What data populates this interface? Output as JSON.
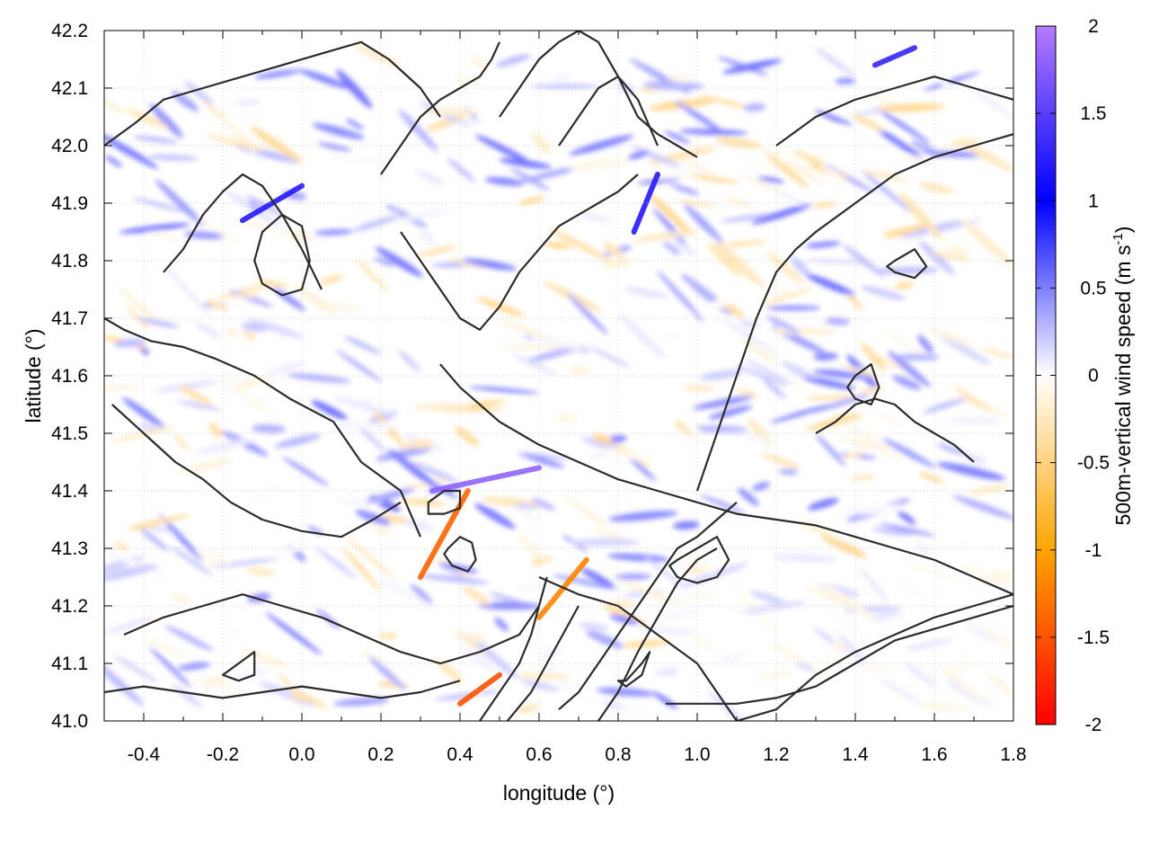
{
  "chart_data": {
    "type": "heatmap",
    "title": "",
    "xlabel": "longitude (°)",
    "ylabel": "latitude (°)",
    "xlim": [
      -0.5,
      1.8
    ],
    "ylim": [
      41.0,
      42.2
    ],
    "x_ticks": [
      -0.4,
      -0.2,
      0.0,
      0.2,
      0.4,
      0.6,
      0.8,
      1.0,
      1.2,
      1.4,
      1.6,
      1.8
    ],
    "x_tick_labels": [
      "-0.4",
      "-0.2",
      "0.0",
      "0.2",
      "0.4",
      "0.6",
      "0.8",
      "1.0",
      "1.2",
      "1.4",
      "1.6",
      "1.8"
    ],
    "y_ticks": [
      41.0,
      41.1,
      41.2,
      41.3,
      41.4,
      41.5,
      41.6,
      41.7,
      41.8,
      41.9,
      42.0,
      42.1,
      42.2
    ],
    "y_tick_labels": [
      "41.0",
      "41.1",
      "41.2",
      "41.3",
      "41.4",
      "41.5",
      "41.6",
      "41.7",
      "41.8",
      "41.9",
      "42.0",
      "42.1",
      "42.2"
    ],
    "grid": true,
    "colorbar": {
      "label": "500m-vertical wind speed (m s",
      "label_superscript": "-1",
      "label_close": ")",
      "range": [
        -2,
        2
      ],
      "ticks": [
        2,
        1.5,
        1,
        0.5,
        0,
        -0.5,
        -1,
        -1.5,
        -2
      ],
      "tick_labels": [
        "2",
        "1.5",
        "1",
        "0.5",
        "0",
        "-0.5",
        "-1",
        "-1.5",
        "-2"
      ],
      "stops": [
        {
          "value": 2.0,
          "color": "#b47cff"
        },
        {
          "value": 1.0,
          "color": "#0000ff"
        },
        {
          "value": 0.0,
          "color": "#ffffff"
        },
        {
          "value": -1.0,
          "color": "#ffa500"
        },
        {
          "value": -2.0,
          "color": "#ff0000"
        }
      ]
    },
    "features": [
      {
        "name": "updraft band",
        "x": [
          0.33,
          0.6
        ],
        "y": [
          41.4,
          41.44
        ],
        "value": 1.8
      },
      {
        "name": "updraft NE",
        "x": [
          0.84,
          0.9
        ],
        "y": [
          41.85,
          41.95
        ],
        "value": 1.2
      },
      {
        "name": "updraft NW",
        "x": [
          -0.15,
          0.0
        ],
        "y": [
          41.87,
          41.93
        ],
        "value": 1.2
      },
      {
        "name": "updraft top",
        "x": [
          1.45,
          1.55
        ],
        "y": [
          42.14,
          42.17
        ],
        "value": 1.3
      },
      {
        "name": "downdraft south",
        "x": [
          0.4,
          0.5
        ],
        "y": [
          41.03,
          41.08
        ],
        "value": -1.5
      },
      {
        "name": "downdraft center",
        "x": [
          0.3,
          0.42
        ],
        "y": [
          41.25,
          41.4
        ],
        "value": -1.4
      },
      {
        "name": "downdraft east",
        "x": [
          0.6,
          0.72
        ],
        "y": [
          41.18,
          41.28
        ],
        "value": -1.2
      }
    ],
    "contours": [
      {
        "x": [
          -0.5,
          -0.45,
          -0.38,
          -0.3,
          -0.22,
          -0.12,
          -0.03,
          0.08,
          0.15,
          0.25,
          0.3
        ],
        "y": [
          41.7,
          41.68,
          41.66,
          41.65,
          41.63,
          41.6,
          41.56,
          41.52,
          41.45,
          41.4,
          41.32
        ]
      },
      {
        "x": [
          -0.48,
          -0.4,
          -0.32,
          -0.25,
          -0.18,
          -0.1,
          0.0,
          0.1,
          0.18,
          0.25
        ],
        "y": [
          41.55,
          41.5,
          41.45,
          41.42,
          41.38,
          41.35,
          41.33,
          41.32,
          41.35,
          41.38
        ]
      },
      {
        "x": [
          -0.35,
          -0.3,
          -0.25,
          -0.2,
          -0.15,
          -0.1,
          -0.05,
          0.0,
          0.05
        ],
        "y": [
          41.78,
          41.82,
          41.88,
          41.92,
          41.95,
          41.93,
          41.88,
          41.82,
          41.75
        ]
      },
      {
        "x": [
          -0.5,
          -0.42,
          -0.35,
          -0.25,
          -0.15,
          -0.05,
          0.05,
          0.15,
          0.22,
          0.3,
          0.35
        ],
        "y": [
          42.0,
          42.04,
          42.08,
          42.1,
          42.12,
          42.14,
          42.16,
          42.18,
          42.15,
          42.1,
          42.05
        ]
      },
      {
        "x": [
          0.25,
          0.3,
          0.35,
          0.4,
          0.45,
          0.5,
          0.55,
          0.6,
          0.65,
          0.7,
          0.75,
          0.8,
          0.85
        ],
        "y": [
          41.85,
          41.8,
          41.75,
          41.7,
          41.68,
          41.72,
          41.78,
          41.82,
          41.86,
          41.88,
          41.9,
          41.92,
          41.95
        ]
      },
      {
        "x": [
          0.35,
          0.4,
          0.45,
          0.5,
          0.55,
          0.6,
          0.7,
          0.8,
          0.9,
          1.0,
          1.1,
          1.2,
          1.3,
          1.4,
          1.5,
          1.6,
          1.7,
          1.8
        ],
        "y": [
          41.62,
          41.58,
          41.55,
          41.52,
          41.5,
          41.48,
          41.45,
          41.42,
          41.4,
          41.38,
          41.36,
          41.35,
          41.34,
          41.32,
          41.3,
          41.28,
          41.25,
          41.22
        ]
      },
      {
        "x": [
          0.6,
          0.7,
          0.8,
          0.9,
          1.0,
          1.05,
          1.1,
          1.2,
          1.3,
          1.4,
          1.5,
          1.6,
          1.7,
          1.8
        ],
        "y": [
          41.25,
          41.22,
          41.2,
          41.15,
          41.1,
          41.05,
          41.0,
          41.02,
          41.08,
          41.12,
          41.15,
          41.18,
          41.2,
          41.22
        ]
      },
      {
        "x": [
          0.65,
          0.7,
          0.75,
          0.8,
          0.85,
          0.9,
          0.95,
          1.0,
          1.05,
          1.1
        ],
        "y": [
          41.02,
          41.05,
          41.1,
          41.15,
          41.2,
          41.25,
          41.3,
          41.32,
          41.35,
          41.38
        ]
      },
      {
        "x": [
          0.75,
          0.8,
          0.85,
          0.9,
          0.95,
          1.0,
          1.05
        ],
        "y": [
          41.0,
          41.05,
          41.12,
          41.18,
          41.24,
          41.28,
          41.3
        ]
      },
      {
        "x": [
          0.92,
          1.0,
          1.1,
          1.2,
          1.3,
          1.4,
          1.5,
          1.6,
          1.7,
          1.8
        ],
        "y": [
          41.03,
          41.03,
          41.03,
          41.04,
          41.06,
          41.1,
          41.14,
          41.16,
          41.18,
          41.2
        ]
      },
      {
        "x": [
          1.0,
          1.05,
          1.1,
          1.15,
          1.2,
          1.25,
          1.3,
          1.4,
          1.5,
          1.6,
          1.7,
          1.8
        ],
        "y": [
          41.4,
          41.5,
          41.6,
          41.7,
          41.78,
          41.82,
          41.85,
          41.9,
          41.95,
          41.98,
          42.0,
          42.02
        ]
      },
      {
        "x": [
          1.2,
          1.3,
          1.4,
          1.5,
          1.6,
          1.7,
          1.8
        ],
        "y": [
          42.0,
          42.05,
          42.08,
          42.1,
          42.12,
          42.1,
          42.08
        ]
      },
      {
        "x": [
          -0.45,
          -0.35,
          -0.25,
          -0.15,
          -0.05,
          0.05,
          0.15,
          0.25,
          0.35,
          0.45,
          0.55,
          0.6
        ],
        "y": [
          41.15,
          41.18,
          41.2,
          41.22,
          41.2,
          41.18,
          41.15,
          41.12,
          41.1,
          41.12,
          41.15,
          41.2
        ]
      },
      {
        "x": [
          -0.5,
          -0.4,
          -0.3,
          -0.2,
          -0.1,
          0.0,
          0.1,
          0.2,
          0.3,
          0.4
        ],
        "y": [
          41.05,
          41.06,
          41.05,
          41.04,
          41.05,
          41.06,
          41.05,
          41.04,
          41.05,
          41.07
        ]
      },
      {
        "x": [
          0.45,
          0.5,
          0.55,
          0.58,
          0.6,
          0.62
        ],
        "y": [
          41.0,
          41.05,
          41.1,
          41.15,
          41.2,
          41.25
        ]
      },
      {
        "x": [
          0.52,
          0.58,
          0.62,
          0.66,
          0.7
        ],
        "y": [
          41.0,
          41.05,
          41.1,
          41.15,
          41.2
        ]
      },
      {
        "x": [
          0.2,
          0.25,
          0.3,
          0.35,
          0.4,
          0.45,
          0.48,
          0.5
        ],
        "y": [
          41.95,
          42.0,
          42.05,
          42.08,
          42.1,
          42.12,
          42.15,
          42.18
        ]
      },
      {
        "x": [
          0.5,
          0.55,
          0.6,
          0.65,
          0.7,
          0.75,
          0.8,
          0.85,
          0.9,
          0.95,
          1.0
        ],
        "y": [
          42.05,
          42.1,
          42.15,
          42.18,
          42.2,
          42.18,
          42.12,
          42.05,
          42.02,
          42.0,
          41.98
        ]
      },
      {
        "x": [
          0.65,
          0.7,
          0.75,
          0.8,
          0.85,
          0.9
        ],
        "y": [
          42.0,
          42.05,
          42.1,
          42.12,
          42.08,
          42.0
        ]
      },
      {
        "x": [
          1.3,
          1.35,
          1.4,
          1.45,
          1.5,
          1.55,
          1.6,
          1.65,
          1.7
        ],
        "y": [
          41.5,
          41.52,
          41.55,
          41.56,
          41.55,
          41.52,
          41.5,
          41.48,
          41.45
        ]
      }
    ],
    "closed_contours": [
      {
        "x": [
          -0.1,
          -0.05,
          0.0,
          0.02,
          0.0,
          -0.05,
          -0.1,
          -0.12,
          -0.1
        ],
        "y": [
          41.85,
          41.88,
          41.86,
          41.8,
          41.75,
          41.74,
          41.76,
          41.8,
          41.85
        ]
      },
      {
        "x": [
          0.37,
          0.4,
          0.43,
          0.44,
          0.42,
          0.38,
          0.36,
          0.37
        ],
        "y": [
          41.3,
          41.32,
          41.31,
          41.28,
          41.26,
          41.27,
          41.29,
          41.3
        ]
      },
      {
        "x": [
          0.32,
          0.36,
          0.4,
          0.4,
          0.36,
          0.32,
          0.32
        ],
        "y": [
          41.38,
          41.4,
          41.4,
          41.37,
          41.36,
          41.36,
          41.38
        ]
      },
      {
        "x": [
          -0.2,
          -0.16,
          -0.12,
          -0.12,
          -0.16,
          -0.2,
          -0.2
        ],
        "y": [
          41.08,
          41.1,
          41.12,
          41.08,
          41.07,
          41.08,
          41.08
        ]
      },
      {
        "x": [
          0.82,
          0.86,
          0.88,
          0.86,
          0.82,
          0.8,
          0.82
        ],
        "y": [
          41.07,
          41.1,
          41.12,
          41.08,
          41.06,
          41.07,
          41.07
        ]
      },
      {
        "x": [
          1.4,
          1.44,
          1.46,
          1.44,
          1.4,
          1.38,
          1.4
        ],
        "y": [
          41.6,
          41.62,
          41.58,
          41.55,
          41.56,
          41.58,
          41.6
        ]
      },
      {
        "x": [
          1.5,
          1.55,
          1.58,
          1.55,
          1.5,
          1.48,
          1.5
        ],
        "y": [
          41.8,
          41.82,
          41.79,
          41.77,
          41.78,
          41.79,
          41.8
        ]
      },
      {
        "x": [
          0.95,
          1.0,
          1.05,
          1.08,
          1.05,
          1.0,
          0.95,
          0.93,
          0.95
        ],
        "y": [
          41.28,
          41.3,
          41.32,
          41.28,
          41.25,
          41.24,
          41.25,
          41.27,
          41.28
        ]
      }
    ]
  }
}
